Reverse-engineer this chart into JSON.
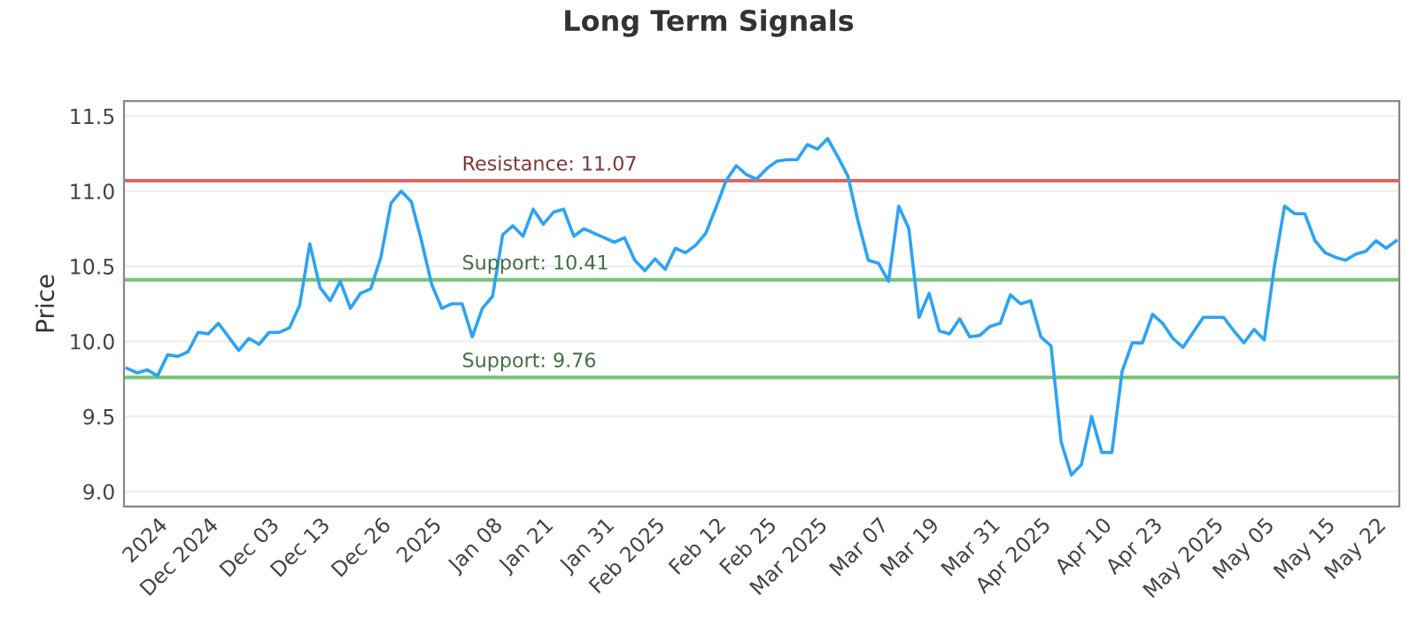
{
  "chart_data": {
    "type": "line",
    "title": "Long Term Signals",
    "ylabel": "Price",
    "categories": [
      null,
      null,
      null,
      "2024",
      null,
      null,
      null,
      null,
      "Dec 2024",
      null,
      null,
      null,
      null,
      null,
      "Dec 03",
      null,
      null,
      null,
      null,
      "Dec 13",
      null,
      null,
      null,
      null,
      null,
      "Dec 26",
      null,
      null,
      null,
      null,
      "2025",
      null,
      null,
      null,
      null,
      null,
      "Jan 08",
      null,
      null,
      null,
      null,
      "Jan 21",
      null,
      null,
      null,
      null,
      null,
      "Jan 31",
      null,
      null,
      null,
      null,
      "Feb 2025",
      null,
      null,
      null,
      null,
      null,
      "Feb 12",
      null,
      null,
      null,
      null,
      "Feb 25",
      null,
      null,
      null,
      null,
      "Mar 2025",
      null,
      null,
      null,
      null,
      null,
      "Mar 07",
      null,
      null,
      null,
      null,
      "Mar 19",
      null,
      null,
      null,
      null,
      null,
      "Mar 31",
      null,
      null,
      null,
      null,
      "Apr 2025",
      null,
      null,
      null,
      null,
      null,
      "Apr 10",
      null,
      null,
      null,
      null,
      "Apr 23",
      null,
      null,
      null,
      null,
      null,
      "May 2025",
      null,
      null,
      null,
      null,
      "May 05",
      null,
      null,
      null,
      null,
      null,
      "May 15",
      null,
      null,
      null,
      null,
      "May 22",
      null,
      null
    ],
    "series": [
      {
        "color": "#2ea3f2",
        "values": [
          9.82,
          9.79,
          9.81,
          9.77,
          9.91,
          9.9,
          9.93,
          10.06,
          10.05,
          10.12,
          10.03,
          9.94,
          10.02,
          9.98,
          10.06,
          10.06,
          10.09,
          10.24,
          10.65,
          10.36,
          10.27,
          10.4,
          10.22,
          10.32,
          10.35,
          10.56,
          10.92,
          11.0,
          10.93,
          10.67,
          10.38,
          10.22,
          10.25,
          10.25,
          10.03,
          10.22,
          10.3,
          10.71,
          10.77,
          10.7,
          10.88,
          10.78,
          10.86,
          10.88,
          10.7,
          10.75,
          10.72,
          10.69,
          10.66,
          10.69,
          10.54,
          10.47,
          10.55,
          10.48,
          10.62,
          10.59,
          10.64,
          10.72,
          10.89,
          11.07,
          11.17,
          11.11,
          11.08,
          11.15,
          11.2,
          11.21,
          11.21,
          11.31,
          11.28,
          11.35,
          11.23,
          11.1,
          10.8,
          10.54,
          10.52,
          10.4,
          10.9,
          10.75,
          10.16,
          10.32,
          10.07,
          10.05,
          10.15,
          10.03,
          10.04,
          10.1,
          10.12,
          10.31,
          10.25,
          10.27,
          10.03,
          9.97,
          9.33,
          9.11,
          9.18,
          9.5,
          9.26,
          9.26,
          9.8,
          9.99,
          9.99,
          10.18,
          10.12,
          10.02,
          9.96,
          10.06,
          10.16,
          10.16,
          10.16,
          10.07,
          9.99,
          10.08,
          10.01,
          10.5,
          10.9,
          10.85,
          10.85,
          10.67,
          10.59,
          10.56,
          10.54,
          10.58,
          10.6,
          10.67,
          10.62,
          10.67
        ]
      }
    ],
    "ylim": [
      8.9,
      11.6
    ],
    "yticks": [
      {
        "value": 9,
        "label": "9.0"
      },
      9.5,
      {
        "value": 10,
        "label": "10.0"
      },
      10.5,
      {
        "value": 11,
        "label": "11.0"
      },
      11.5
    ],
    "grid": "y",
    "ref_lines": [
      {
        "axis": "y",
        "value": 11.07,
        "label": "Resistance: 11.07",
        "color": "#e06666"
      },
      {
        "axis": "y",
        "value": 10.41,
        "label": "Support: 10.41",
        "color": "#7cc47c"
      },
      {
        "axis": "y",
        "value": 9.76,
        "label": "Support: 9.76",
        "color": "#7cc47c"
      }
    ]
  }
}
